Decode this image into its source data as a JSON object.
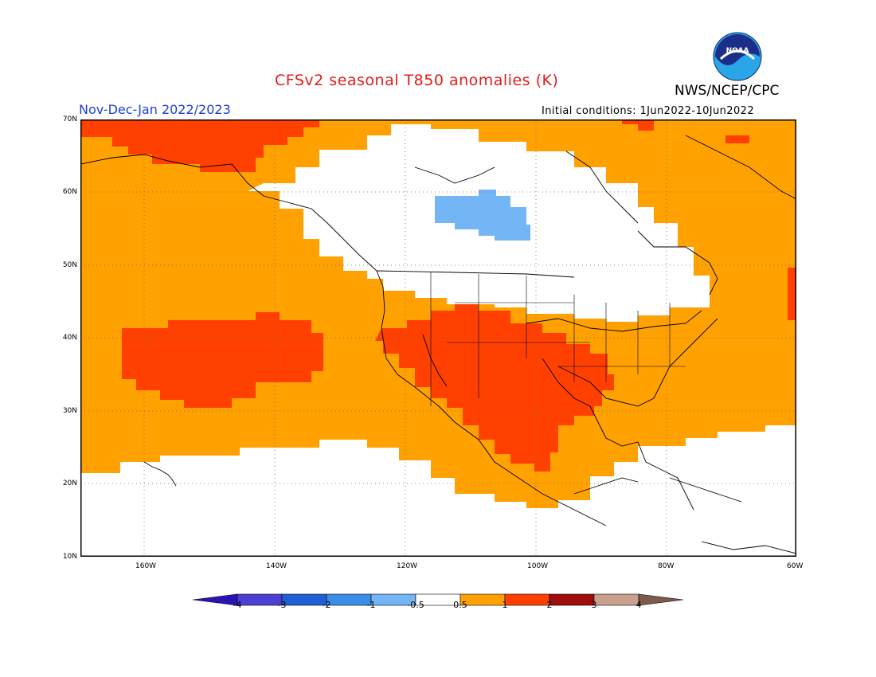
{
  "header": {
    "title": "CFSv2 seasonal T850 anomalies (K)",
    "agency": "NWS/NCEP/CPC",
    "period": "Nov-Dec-Jan 2022/2023",
    "initial_conditions": "Initial conditions: 1Jun2022-10Jun2022",
    "logo_text": "NOAA"
  },
  "map": {
    "lat_labels": [
      "70N",
      "60N",
      "50N",
      "40N",
      "30N",
      "20N",
      "10N"
    ],
    "lon_labels": [
      "160W",
      "140W",
      "120W",
      "100W",
      "80W",
      "60W"
    ],
    "colors": {
      "pos_0_5_1": "#ffa100",
      "pos_1_2": "#ff4000",
      "neg_1_0_5": "#73b5f5",
      "neutral": "#ffffff"
    }
  },
  "colorbar": {
    "labels": [
      "-4",
      "-3",
      "-2",
      "-1",
      "-0.5",
      "0.5",
      "1",
      "2",
      "3",
      "4"
    ],
    "colors": [
      "#2a14b5",
      "#4b3fd4",
      "#1f5fd6",
      "#3a8ee8",
      "#73b5f5",
      "#ffffff",
      "#ffa100",
      "#ff4000",
      "#a00d0d",
      "#c9a08e",
      "#7d5a4a"
    ]
  }
}
